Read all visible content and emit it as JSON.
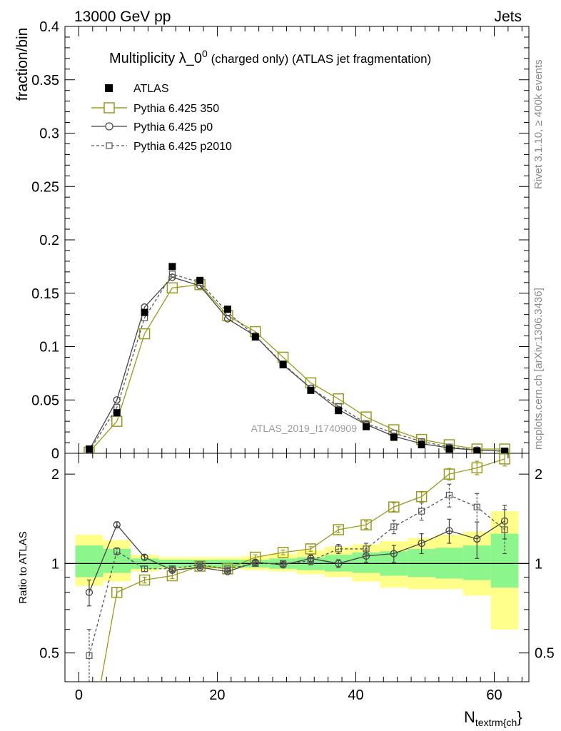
{
  "header": {
    "left": "13000 GeV pp",
    "right": "Jets"
  },
  "side_labels": {
    "rivet": "Rivet 3.1.10, ≥ 400k events",
    "mcplots": "mcplots.cern.ch [arXiv:1306.3436]"
  },
  "chart_data": [
    {
      "type": "scatter",
      "panel": "main",
      "title": "Multiplicity λ_0",
      "title_sup": "0",
      "title_suffix": " (charged only) (ATLAS jet fragmentation)",
      "ylabel": "fraction/bin",
      "xlabel_main": "N",
      "xlabel_sub": "textrm{ch",
      "xlabel_end": "}",
      "watermark": "ATLAS_2019_I1740909",
      "xlim": [
        -2,
        65
      ],
      "ylim": [
        0,
        0.4
      ],
      "yticks": [
        "0",
        "0.05",
        "0.1",
        "0.15",
        "0.2",
        "0.25",
        "0.3",
        "0.35",
        "0.4"
      ],
      "ytick_values": [
        0,
        0.05,
        0.1,
        0.15,
        0.2,
        0.25,
        0.3,
        0.35,
        0.4
      ],
      "x": [
        1.5,
        5.5,
        9.5,
        13.5,
        17.5,
        21.5,
        25.5,
        29.5,
        33.5,
        37.5,
        41.5,
        45.5,
        49.5,
        53.5,
        57.5,
        61.5
      ],
      "series": [
        {
          "name": "ATLAS",
          "style": "data",
          "color": "#000000",
          "values": [
            0.004,
            0.038,
            0.132,
            0.175,
            0.162,
            0.135,
            0.109,
            0.083,
            0.059,
            0.04,
            0.025,
            0.015,
            0.008,
            0.004,
            0.002,
            0.002
          ]
        },
        {
          "name": "Pythia 6.425 350",
          "style": "big-square",
          "color": "#9a9a1e",
          "values": [
            0.001,
            0.03,
            0.112,
            0.155,
            0.158,
            0.129,
            0.114,
            0.09,
            0.066,
            0.051,
            0.034,
            0.022,
            0.013,
            0.008,
            0.004,
            0.004
          ]
        },
        {
          "name": "Pythia 6.425 p0",
          "style": "circle",
          "color": "#444444",
          "values": [
            0.003,
            0.05,
            0.137,
            0.165,
            0.157,
            0.126,
            0.11,
            0.083,
            0.061,
            0.041,
            0.027,
            0.016,
            0.009,
            0.005,
            0.003,
            0.002
          ]
        },
        {
          "name": "Pythia 6.425 p2010",
          "style": "small-square-dashed",
          "color": "#555555",
          "values": [
            0.002,
            0.043,
            0.127,
            0.168,
            0.16,
            0.132,
            0.11,
            0.084,
            0.061,
            0.044,
            0.028,
            0.019,
            0.011,
            0.006,
            0.003,
            0.002
          ]
        }
      ]
    },
    {
      "type": "line",
      "panel": "ratio",
      "ylabel": "Ratio to ATLAS",
      "ylim": [
        0.4,
        2.35
      ],
      "yticks": [
        "0.5",
        "1",
        "2"
      ],
      "ytick_values": [
        0.5,
        1,
        2
      ],
      "xticks": [
        "0",
        "20",
        "40",
        "60"
      ],
      "xtick_values": [
        0,
        20,
        40,
        60
      ],
      "bin_edges": [
        -0.5,
        3.5,
        7.5,
        11.5,
        15.5,
        19.5,
        23.5,
        27.5,
        31.5,
        35.5,
        39.5,
        43.5,
        47.5,
        51.5,
        55.5,
        59.5,
        63.5
      ],
      "band_yellow": [
        [
          0.84,
          1.25
        ],
        [
          0.87,
          1.2
        ],
        [
          0.94,
          1.07
        ],
        [
          0.96,
          1.05
        ],
        [
          0.96,
          1.05
        ],
        [
          0.96,
          1.05
        ],
        [
          0.95,
          1.06
        ],
        [
          0.94,
          1.08
        ],
        [
          0.92,
          1.11
        ],
        [
          0.9,
          1.14
        ],
        [
          0.87,
          1.16
        ],
        [
          0.83,
          1.19
        ],
        [
          0.82,
          1.22
        ],
        [
          0.82,
          1.25
        ],
        [
          0.78,
          1.28
        ],
        [
          0.6,
          1.5
        ]
      ],
      "band_green": [
        [
          0.9,
          1.15
        ],
        [
          0.93,
          1.12
        ],
        [
          0.96,
          1.04
        ],
        [
          0.97,
          1.03
        ],
        [
          0.97,
          1.03
        ],
        [
          0.97,
          1.03
        ],
        [
          0.97,
          1.03
        ],
        [
          0.96,
          1.04
        ],
        [
          0.95,
          1.05
        ],
        [
          0.94,
          1.07
        ],
        [
          0.93,
          1.09
        ],
        [
          0.91,
          1.1
        ],
        [
          0.9,
          1.12
        ],
        [
          0.89,
          1.13
        ],
        [
          0.88,
          1.15
        ],
        [
          0.83,
          1.26
        ]
      ],
      "series": [
        {
          "name": "Pythia 6.425 350",
          "values": [
            0.23,
            0.8,
            0.88,
            0.91,
            0.98,
            0.96,
            1.05,
            1.09,
            1.12,
            1.3,
            1.35,
            1.55,
            1.68,
            2.0,
            2.1,
            2.25
          ],
          "errors": [
            0.0,
            0.03,
            0.02,
            0.02,
            0.01,
            0.01,
            0.02,
            0.02,
            0.02,
            0.03,
            0.04,
            0.05,
            0.06,
            0.09,
            0.11,
            0.12
          ]
        },
        {
          "name": "Pythia 6.425 p0",
          "values": [
            0.8,
            1.35,
            1.05,
            0.95,
            0.97,
            0.94,
            1.01,
            0.99,
            1.04,
            1.0,
            1.06,
            1.08,
            1.17,
            1.29,
            1.21,
            1.39
          ],
          "errors": [
            0.08,
            0.03,
            0.02,
            0.02,
            0.01,
            0.01,
            0.02,
            0.02,
            0.03,
            0.03,
            0.05,
            0.07,
            0.09,
            0.12,
            0.17,
            0.18
          ]
        },
        {
          "name": "Pythia 6.425 p2010",
          "values": [
            0.49,
            1.1,
            0.96,
            0.96,
            0.99,
            0.96,
            1.0,
            1.0,
            1.02,
            1.12,
            1.12,
            1.33,
            1.5,
            1.7,
            1.55,
            1.3
          ],
          "errors": [
            0.11,
            0.03,
            0.02,
            0.02,
            0.01,
            0.01,
            0.02,
            0.02,
            0.03,
            0.04,
            0.05,
            0.07,
            0.1,
            0.15,
            0.17,
            0.22
          ]
        }
      ]
    }
  ]
}
